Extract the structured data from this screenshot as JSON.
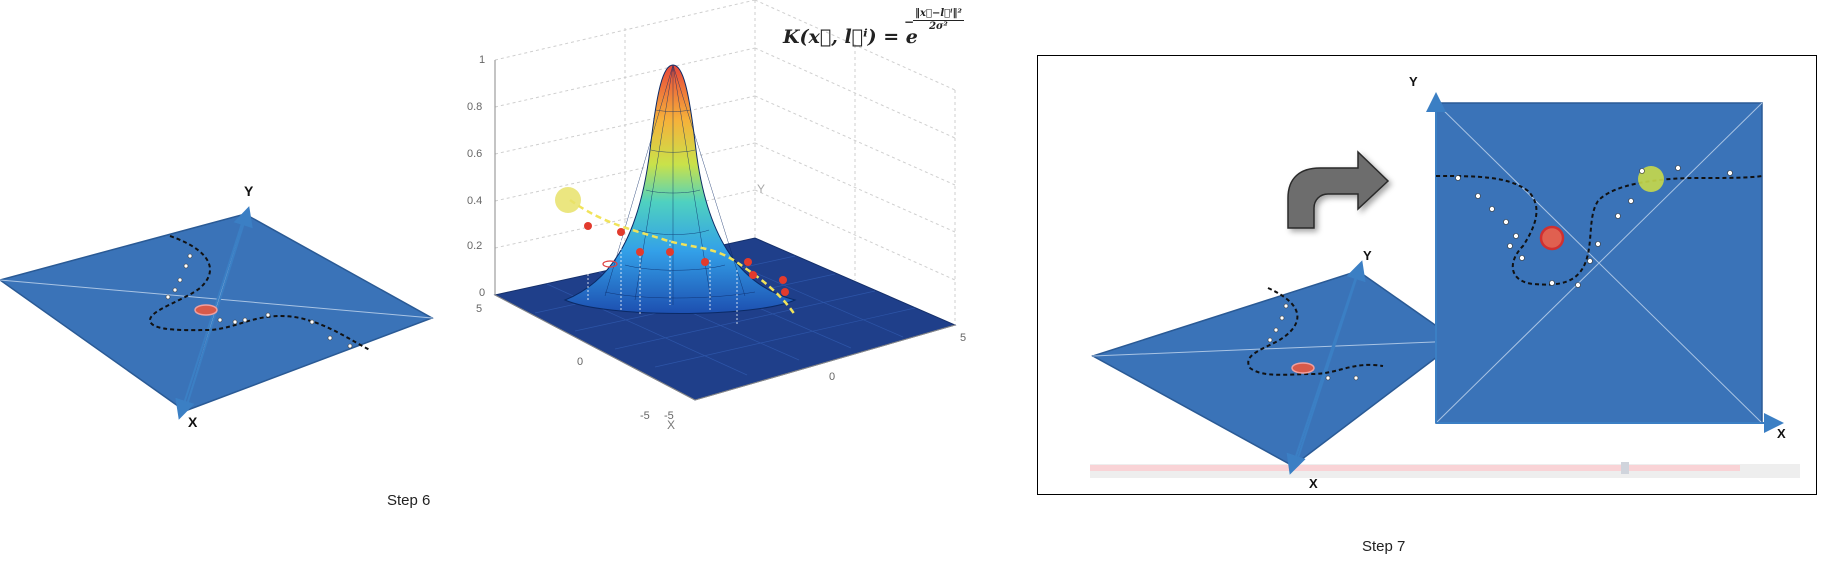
{
  "step6": {
    "caption": "Step 6",
    "plane_axes": {
      "y": "Y",
      "x": "X"
    },
    "surface_chart": {
      "z_ticks": [
        "1",
        "0.8",
        "0.6",
        "0.4",
        "0.2",
        "0"
      ],
      "x_ticks": [
        "5",
        "0",
        "-5"
      ],
      "y_ticks": [
        "-5",
        "0",
        "5"
      ],
      "back_y_label": "Y",
      "front_x_label": "X",
      "formula_lhs": "K(x⃗, l⃗ⁱ) = e",
      "formula_num": "‖x⃗−l⃗ⁱ‖²",
      "formula_den": "2σ²"
    }
  },
  "step7": {
    "caption": "Step 7",
    "small_plane_axes": {
      "y": "Y",
      "x": "X"
    },
    "large_plane_axes": {
      "y": "Y",
      "x": "X"
    }
  },
  "colors": {
    "plane_blue": "#3a73b8",
    "plane_edge": "#2a5a95",
    "axis_arrow": "#3b7fc4",
    "highlight": "#c8d94a",
    "landmark_red": "#e04040",
    "arrow_gray": "#6d6d6d"
  }
}
